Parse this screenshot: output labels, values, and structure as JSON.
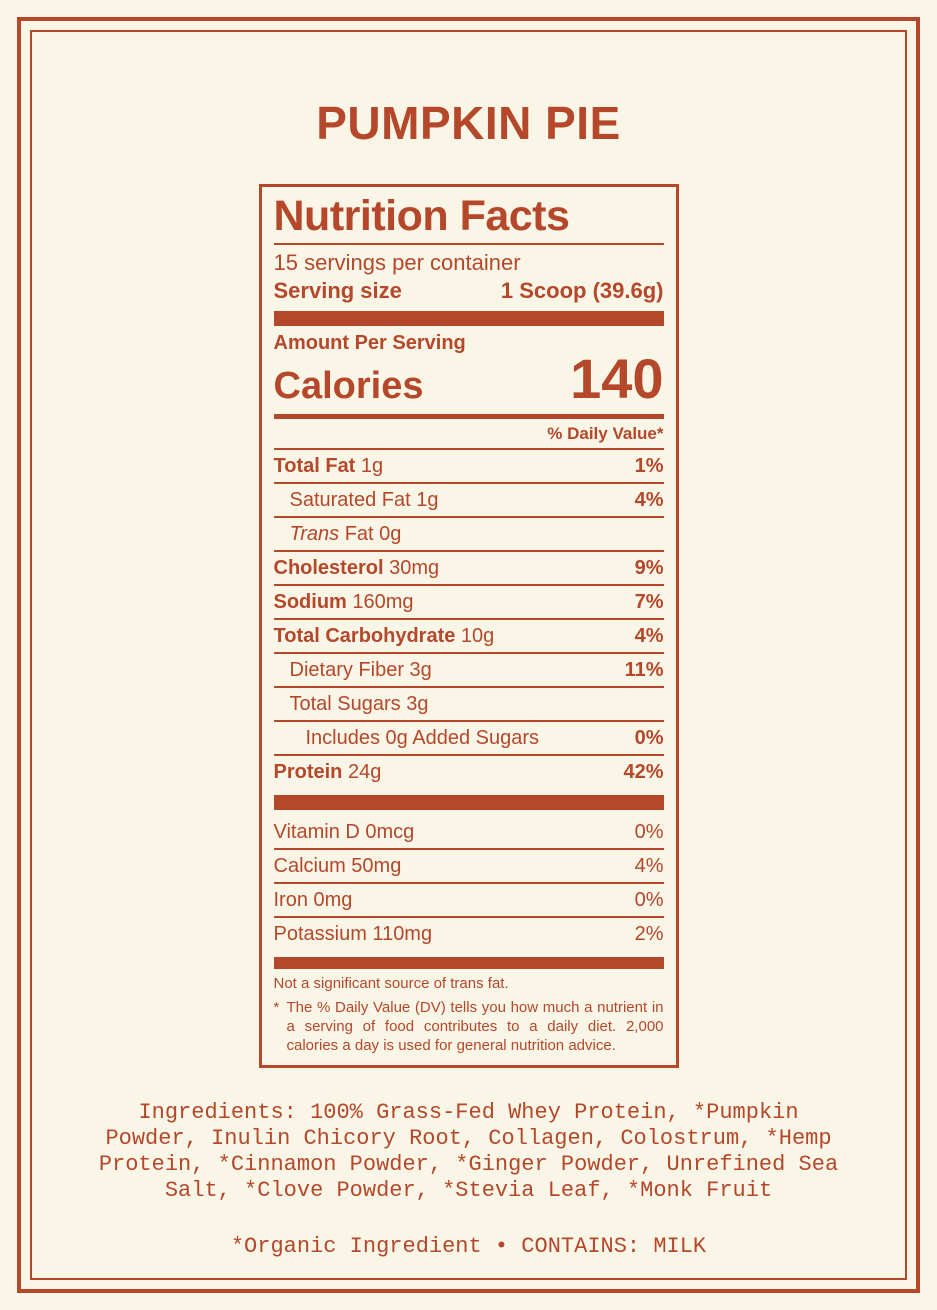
{
  "colors": {
    "accent": "#b5472a",
    "background": "#faf6e7"
  },
  "page": {
    "title": "PUMPKIN PIE"
  },
  "label": {
    "heading": "Nutrition Facts",
    "servings_per_container": "15 servings per container",
    "serving_size_label": "Serving size",
    "serving_size_value": "1 Scoop (39.6g)",
    "amount_per_serving": "Amount Per Serving",
    "calories_label": "Calories",
    "calories_value": "140",
    "daily_value_header": "% Daily Value*",
    "rows": [
      {
        "bold": "Total Fat",
        "rest": " 1g",
        "pct": "1%",
        "pct_bold": true,
        "indent": 0
      },
      {
        "rest": "Saturated Fat 1g",
        "pct": "4%",
        "pct_bold": true,
        "indent": 1
      },
      {
        "italic": "Trans",
        "rest": " Fat 0g",
        "pct": "",
        "pct_bold": false,
        "indent": 1
      },
      {
        "bold": "Cholesterol",
        "rest": " 30mg",
        "pct": "9%",
        "pct_bold": true,
        "indent": 0
      },
      {
        "bold": "Sodium",
        "rest": " 160mg",
        "pct": "7%",
        "pct_bold": true,
        "indent": 0
      },
      {
        "bold": "Total Carbohydrate",
        "rest": " 10g",
        "pct": "4%",
        "pct_bold": true,
        "indent": 0
      },
      {
        "rest": "Dietary Fiber 3g",
        "pct": "11%",
        "pct_bold": true,
        "indent": 1
      },
      {
        "rest": "Total Sugars 3g",
        "pct": "",
        "pct_bold": false,
        "indent": 1
      },
      {
        "rest": "Includes 0g Added Sugars",
        "pct": "0%",
        "pct_bold": true,
        "indent": 2
      },
      {
        "bold": "Protein",
        "rest": " 24g",
        "pct": "42%",
        "pct_bold": true,
        "indent": 0
      }
    ],
    "vitamins": [
      {
        "rest": "Vitamin D 0mcg",
        "pct": "0%",
        "pct_bold": false,
        "indent": 0
      },
      {
        "rest": "Calcium 50mg",
        "pct": "4%",
        "pct_bold": false,
        "indent": 0
      },
      {
        "rest": "Iron 0mg",
        "pct": "0%",
        "pct_bold": false,
        "indent": 0
      },
      {
        "rest": "Potassium 110mg",
        "pct": "2%",
        "pct_bold": false,
        "indent": 0
      }
    ],
    "footnote_source": "Not a significant source of trans fat.",
    "footnote_dv_marker": "*",
    "footnote_dv": "The % Daily Value (DV) tells you how much a nutrient in a serving of food contributes to a daily diet. 2,000 calories a day is used for general nutrition advice."
  },
  "ingredients": {
    "lines": [
      "Ingredients: 100% Grass-Fed Whey Protein, *Pumpkin",
      "Powder, Inulin Chicory Root, Collagen, Colostrum, *Hemp",
      "Protein, *Cinnamon Powder, *Ginger Powder, Unrefined Sea",
      "Salt, *Clove Powder, *Stevia Leaf, *Monk Fruit"
    ],
    "organic_note": "*Organic Ingredient • CONTAINS: MILK"
  }
}
